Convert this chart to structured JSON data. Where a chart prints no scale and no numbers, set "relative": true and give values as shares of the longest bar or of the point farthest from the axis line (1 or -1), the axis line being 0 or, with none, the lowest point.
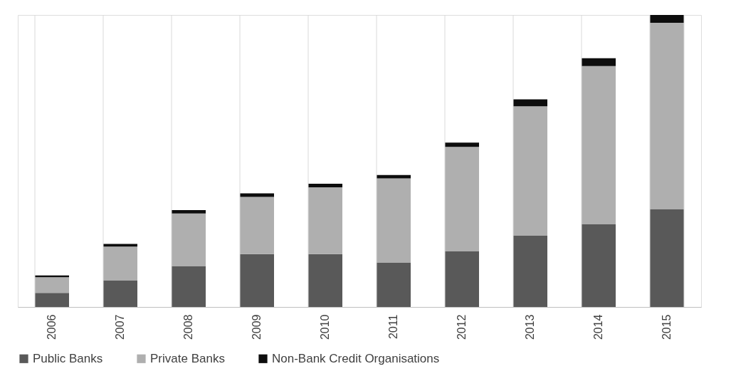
{
  "chart_data": {
    "type": "bar",
    "stacked": true,
    "relative": true,
    "grid": "x",
    "legend": "bottom",
    "categories": [
      "2006",
      "2007",
      "2008",
      "2009",
      "2010",
      "2011",
      "2012",
      "2013",
      "2014",
      "2015"
    ],
    "series": [
      {
        "name": "Public Banks",
        "color": "#595959",
        "values": [
          0.048,
          0.09,
          0.139,
          0.181,
          0.181,
          0.151,
          0.19,
          0.244,
          0.283,
          0.334
        ]
      },
      {
        "name": "Private Banks",
        "color": "#afafaf",
        "values": [
          0.054,
          0.117,
          0.181,
          0.196,
          0.229,
          0.289,
          0.358,
          0.443,
          0.542,
          0.639
        ]
      },
      {
        "name": "Non-Bank  Credit Organisations",
        "color": "#0d0d0d",
        "values": [
          0.006,
          0.009,
          0.012,
          0.012,
          0.012,
          0.012,
          0.015,
          0.024,
          0.027,
          0.027
        ]
      }
    ]
  }
}
